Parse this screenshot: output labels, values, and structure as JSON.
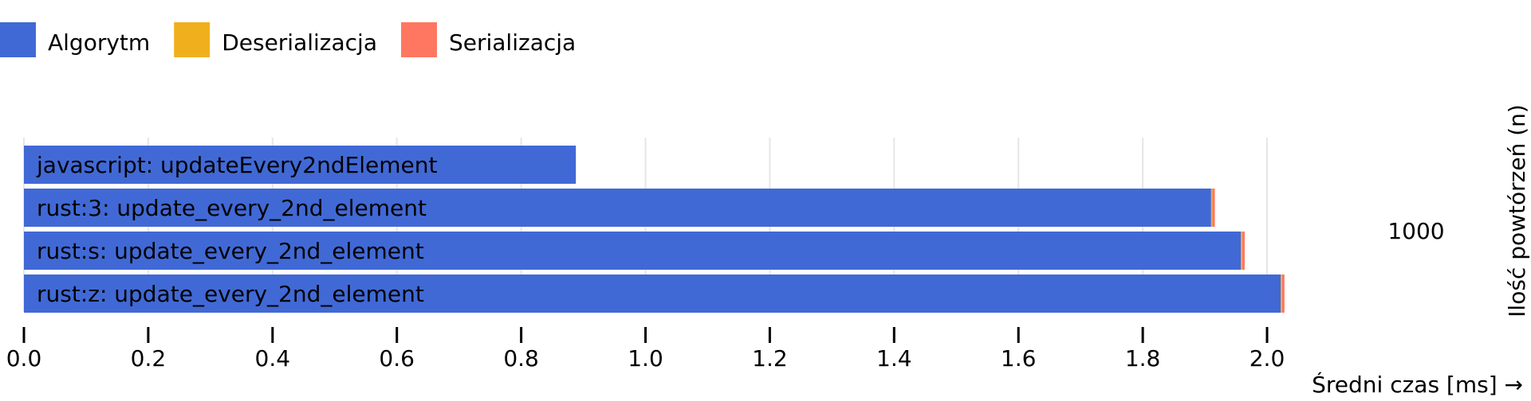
{
  "chart_data": {
    "type": "bar",
    "orientation": "horizontal",
    "stacked": true,
    "xlabel": "Średni czas [ms] →",
    "ylabel": "Ilość powtórzeń (n)",
    "group_label": "1000",
    "xlim": [
      0,
      2.03
    ],
    "xticks": [
      0.0,
      0.2,
      0.4,
      0.6,
      0.8,
      1.0,
      1.2,
      1.4,
      1.6,
      1.8,
      2.0
    ],
    "xtick_labels": [
      "0.0",
      "0.2",
      "0.4",
      "0.6",
      "0.8",
      "1.0",
      "1.2",
      "1.4",
      "1.6",
      "1.8",
      "2.0"
    ],
    "grid": "vertical",
    "legend_position": "top-left",
    "categories": [
      "javascript: updateEvery2ndElement",
      "rust:3: update_every_2nd_element",
      "rust:s: update_every_2nd_element",
      "rust:z: update_every_2nd_element"
    ],
    "series": [
      {
        "name": "Algorytm",
        "color": "#4169d5",
        "values": [
          0.888,
          1.91,
          1.958,
          2.022
        ]
      },
      {
        "name": "Deserializacja",
        "color": "#f0b01e",
        "values": [
          0,
          0.002,
          0.002,
          0.002
        ]
      },
      {
        "name": "Serializacja",
        "color": "#ff7760",
        "values": [
          0,
          0.004,
          0.004,
          0.004
        ]
      }
    ]
  }
}
